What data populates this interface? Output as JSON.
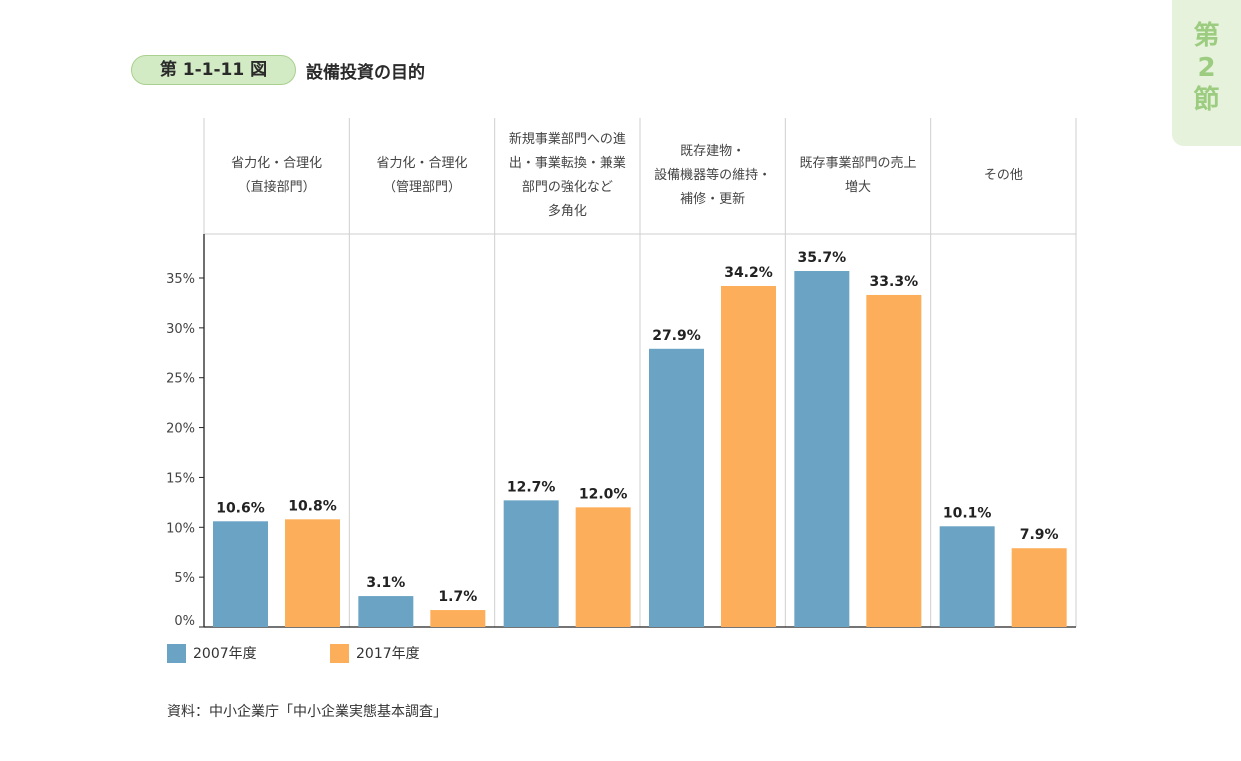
{
  "figure": {
    "number": "第 1-1-11 図",
    "title": "設備投資の目的",
    "source": "資料：中小企業庁「中小企業実態基本調査」"
  },
  "section_tab": {
    "chars": [
      "第",
      "2",
      "節"
    ]
  },
  "colors": {
    "series_2007": "#6aa3c4",
    "series_2017": "#fdae5a",
    "badge_bg": "#d3ebc4",
    "tab_bg": "#e6f2dc",
    "tab_text": "#9ccc7f"
  },
  "chart_data": {
    "type": "bar",
    "categories": [
      "省力化・合理化\n（直接部門）",
      "省力化・合理化\n（管理部門）",
      "新規事業部門への進\n出・事業転換・兼業\n部門の強化など\n多角化",
      "既存建物・\n設備機器等の維持・\n補修・更新",
      "既存事業部門の売上\n増大",
      "その他"
    ],
    "series": [
      {
        "name": "2007年度",
        "values": [
          10.6,
          3.1,
          12.7,
          27.9,
          35.7,
          10.1
        ],
        "labels": [
          "10.6%",
          "3.1%",
          "12.7%",
          "27.9%",
          "35.7%",
          "10.1%"
        ]
      },
      {
        "name": "2017年度",
        "values": [
          10.8,
          1.7,
          12.0,
          34.2,
          33.3,
          7.9
        ],
        "labels": [
          "10.8%",
          "1.7%",
          "12.0%",
          "34.2%",
          "33.3%",
          "7.9%"
        ]
      }
    ],
    "yticks": [
      "0%",
      "5%",
      "10%",
      "15%",
      "20%",
      "25%",
      "30%",
      "35%"
    ],
    "ytick_values": [
      0,
      5,
      10,
      15,
      20,
      25,
      30,
      35
    ],
    "ylim": [
      0,
      35
    ],
    "legend_position": "bottom-left"
  }
}
